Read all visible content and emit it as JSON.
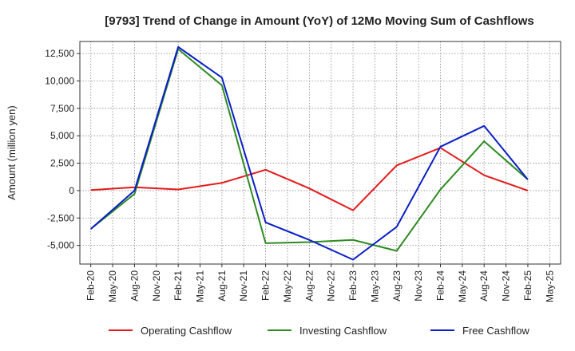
{
  "chart_data": {
    "type": "line",
    "title": "[9793]  Trend of Change in Amount (YoY) of 12Mo Moving Sum of Cashflows",
    "xlabel": "",
    "ylabel": "Amount (million yen)",
    "ylim": [
      -6700,
      13600
    ],
    "yticks": [
      12500,
      10000,
      7500,
      5000,
      2500,
      0,
      -2500,
      -5000
    ],
    "ytick_labels": [
      "12,500",
      "10,000",
      "7,500",
      "5,000",
      "2,500",
      "0",
      "-2,500",
      "-5,000"
    ],
    "x_ticks": [
      "Feb-20",
      "May-20",
      "Aug-20",
      "Nov-20",
      "Feb-21",
      "May-21",
      "Aug-21",
      "Nov-21",
      "Feb-22",
      "May-22",
      "Aug-22",
      "Nov-22",
      "Feb-23",
      "May-23",
      "Aug-23",
      "Nov-23",
      "Feb-24",
      "May-24",
      "Aug-24",
      "Nov-24",
      "Feb-25",
      "May-25"
    ],
    "x_points": [
      "Feb-20",
      "Aug-20",
      "Feb-21",
      "Aug-21",
      "Feb-22",
      "Aug-22",
      "Feb-23",
      "Aug-23",
      "Feb-24",
      "Aug-24",
      "Feb-25"
    ],
    "grid": true,
    "legend_position": "bottom",
    "series": [
      {
        "name": "Operating Cashflow",
        "color": "#e41a1c",
        "values": [
          50,
          300,
          100,
          700,
          1900,
          200,
          -1800,
          2300,
          3900,
          1400,
          0
        ]
      },
      {
        "name": "Investing Cashflow",
        "color": "#2e8b22",
        "values": [
          -3500,
          -300,
          12900,
          9600,
          -4800,
          -4700,
          -4500,
          -5500,
          100,
          4500,
          1000
        ]
      },
      {
        "name": "Free Cashflow",
        "color": "#0a1ec8",
        "values": [
          -3500,
          0,
          13100,
          10300,
          -2900,
          -4500,
          -6300,
          -3300,
          4000,
          5900,
          1000
        ]
      }
    ]
  }
}
